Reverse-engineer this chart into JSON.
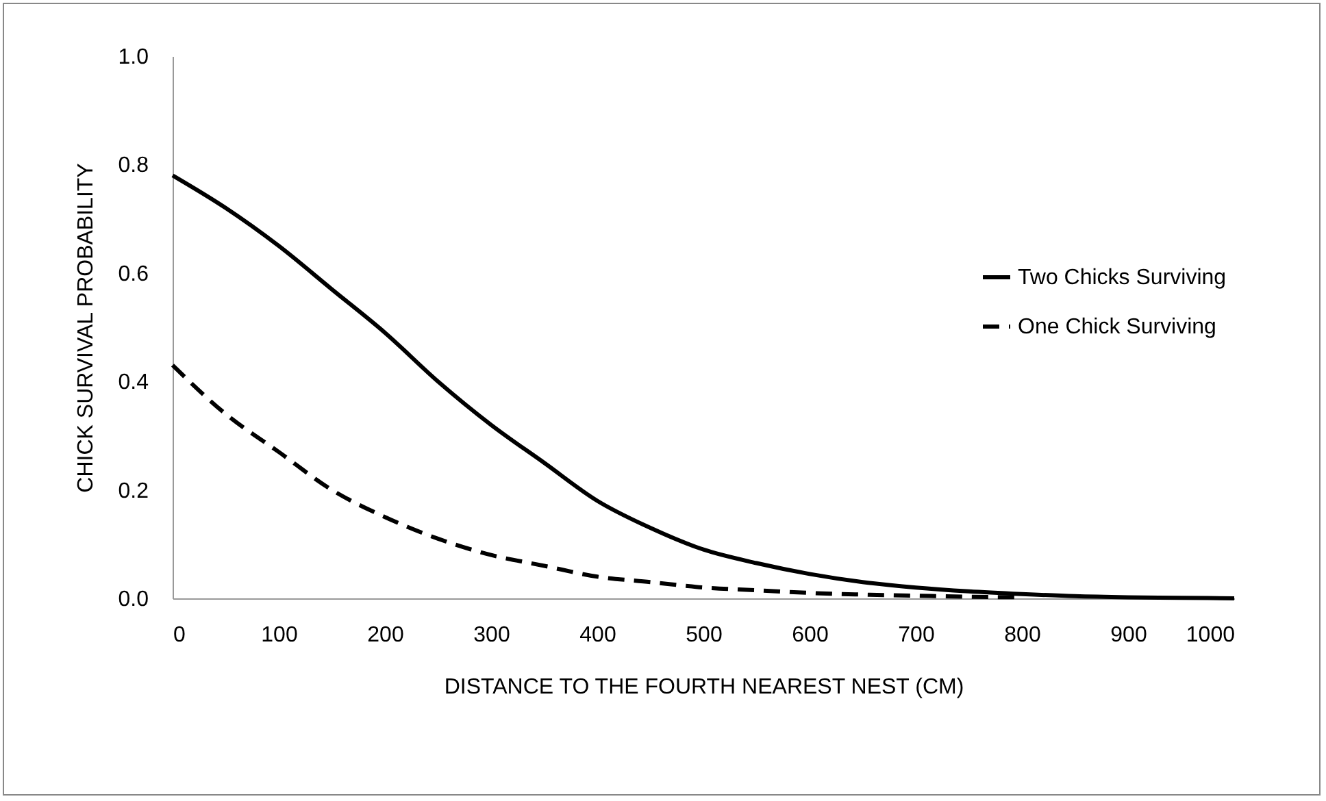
{
  "chart_data": {
    "type": "line",
    "xlabel": "DISTANCE TO THE FOURTH NEAREST NEST (CM)",
    "ylabel": "CHICK SURVIVAL PROBABILITY",
    "x": [
      0,
      50,
      100,
      150,
      200,
      250,
      300,
      350,
      400,
      450,
      500,
      550,
      600,
      650,
      700,
      750,
      800,
      850,
      900,
      950,
      1000
    ],
    "series": [
      {
        "name": "Two Chicks Surviving",
        "color": "#000000",
        "line_style": "solid",
        "values": [
          0.78,
          0.72,
          0.65,
          0.57,
          0.49,
          0.4,
          0.32,
          0.25,
          0.18,
          0.13,
          0.09,
          0.065,
          0.045,
          0.03,
          0.02,
          0.013,
          0.008,
          0.004,
          0.002,
          0.001,
          0
        ]
      },
      {
        "name": "One Chick Surviving",
        "color": "#000000",
        "line_style": "dashed",
        "values": [
          0.43,
          0.34,
          0.27,
          0.2,
          0.15,
          0.11,
          0.08,
          0.06,
          0.04,
          0.03,
          0.02,
          0.015,
          0.01,
          0.007,
          0.005,
          0.003,
          0.002,
          null,
          null,
          null,
          null
        ]
      }
    ],
    "xlim": [
      0,
      1000
    ],
    "xticks": [
      0,
      100,
      200,
      300,
      400,
      500,
      600,
      700,
      800,
      900,
      1000
    ],
    "ylim": [
      0,
      1
    ],
    "yticks": [
      {
        "value": 0,
        "label": "0.0"
      },
      {
        "value": 0.2,
        "label": "0.2"
      },
      {
        "value": 0.4,
        "label": "0.4"
      },
      {
        "value": 0.6,
        "label": "0.6"
      },
      {
        "value": 0.8,
        "label": "0.8"
      },
      {
        "value": 1,
        "label": "1.0"
      }
    ],
    "grid": false,
    "legend": "right",
    "marker": "none"
  }
}
